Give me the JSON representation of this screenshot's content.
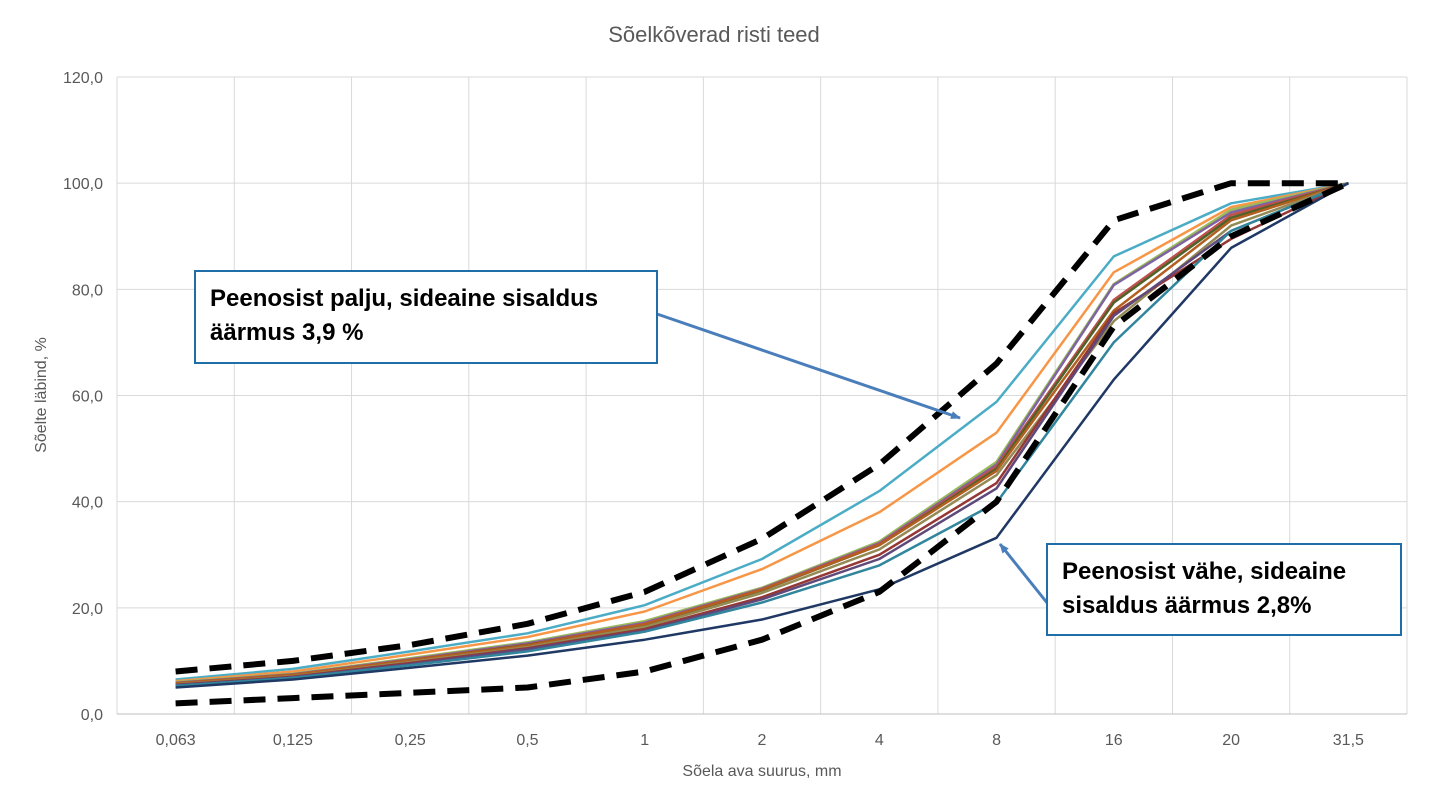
{
  "chart_data": {
    "type": "line",
    "title": "Sõelkõverad risti teed",
    "xlabel": "Sõela ava suurus, mm",
    "ylabel": "Sõelte läbind, %",
    "categories": [
      "0,063",
      "0,125",
      "0,25",
      "0,5",
      "1",
      "2",
      "4",
      "8",
      "16",
      "20",
      "31,5"
    ],
    "ylim": [
      0,
      120
    ],
    "yticks": [
      "0,0",
      "20,0",
      "40,0",
      "60,0",
      "80,0",
      "100,0",
      "120,0"
    ],
    "y_tick_values": [
      0,
      20,
      40,
      60,
      80,
      100,
      120
    ],
    "grid": true,
    "legend": "none",
    "envelope": [
      {
        "values": [
          8,
          10,
          13,
          17,
          23,
          33,
          47,
          66,
          93,
          100,
          100
        ],
        "color": "#000000"
      },
      {
        "values": [
          2,
          3,
          4,
          5,
          8,
          14,
          23,
          40,
          73,
          90,
          100
        ],
        "color": "#000000"
      }
    ],
    "series": [
      {
        "color": "#4bacc6",
        "values": [
          6.5,
          8.5,
          11.8,
          15.2,
          20.5,
          29.2,
          42.0,
          58.8,
          86.2,
          96.2,
          100
        ]
      },
      {
        "color": "#f79646",
        "values": [
          6.2,
          8.0,
          11.2,
          14.5,
          19.3,
          27.3,
          38.0,
          53.0,
          83.2,
          95.5,
          100
        ]
      },
      {
        "color": "#9bbb59",
        "values": [
          6.0,
          7.6,
          10.5,
          13.5,
          17.5,
          23.8,
          32.5,
          47.5,
          81.0,
          95.0,
          100
        ]
      },
      {
        "color": "#8064a2",
        "values": [
          5.9,
          7.5,
          10.3,
          13.3,
          17.2,
          23.6,
          32.2,
          47.0,
          80.8,
          94.5,
          100
        ]
      },
      {
        "color": "#c0504d",
        "values": [
          5.8,
          7.4,
          10.2,
          13.1,
          17.0,
          23.5,
          32.0,
          46.6,
          78.0,
          94.0,
          100
        ]
      },
      {
        "color": "#4f6228",
        "values": [
          5.7,
          7.3,
          10.1,
          13.0,
          16.8,
          23.3,
          31.8,
          46.2,
          77.5,
          93.5,
          100
        ]
      },
      {
        "color": "#b35f20",
        "values": [
          5.8,
          7.4,
          10.1,
          12.9,
          16.9,
          23.4,
          31.8,
          45.8,
          76.0,
          93.0,
          100
        ]
      },
      {
        "color": "#948a54",
        "values": [
          5.6,
          7.1,
          9.8,
          12.6,
          16.4,
          22.8,
          31.0,
          45.0,
          74.0,
          92.0,
          100
        ]
      },
      {
        "color": "#953735",
        "values": [
          5.5,
          7.0,
          9.6,
          12.4,
          16.0,
          22.0,
          30.0,
          43.5,
          75.5,
          89.5,
          100
        ]
      },
      {
        "color": "#5f497a",
        "values": [
          5.4,
          6.9,
          9.4,
          12.2,
          15.7,
          21.6,
          29.2,
          42.5,
          75.0,
          91.0,
          100
        ]
      },
      {
        "color": "#31859c",
        "values": [
          5.3,
          6.8,
          9.2,
          11.8,
          15.5,
          21.0,
          28.0,
          39.8,
          70.0,
          91.0,
          100
        ]
      },
      {
        "color": "#1f3864",
        "values": [
          5.0,
          6.5,
          8.7,
          11.0,
          14.0,
          17.8,
          23.5,
          33.2,
          63.0,
          87.8,
          100
        ]
      }
    ],
    "annotations": [
      {
        "text": "Peenosist palju, sideaine sisaldus äärmus 3,9 %"
      },
      {
        "text": "Peenosist vähe, sideaine sisaldus äärmus 2,8%"
      }
    ]
  }
}
